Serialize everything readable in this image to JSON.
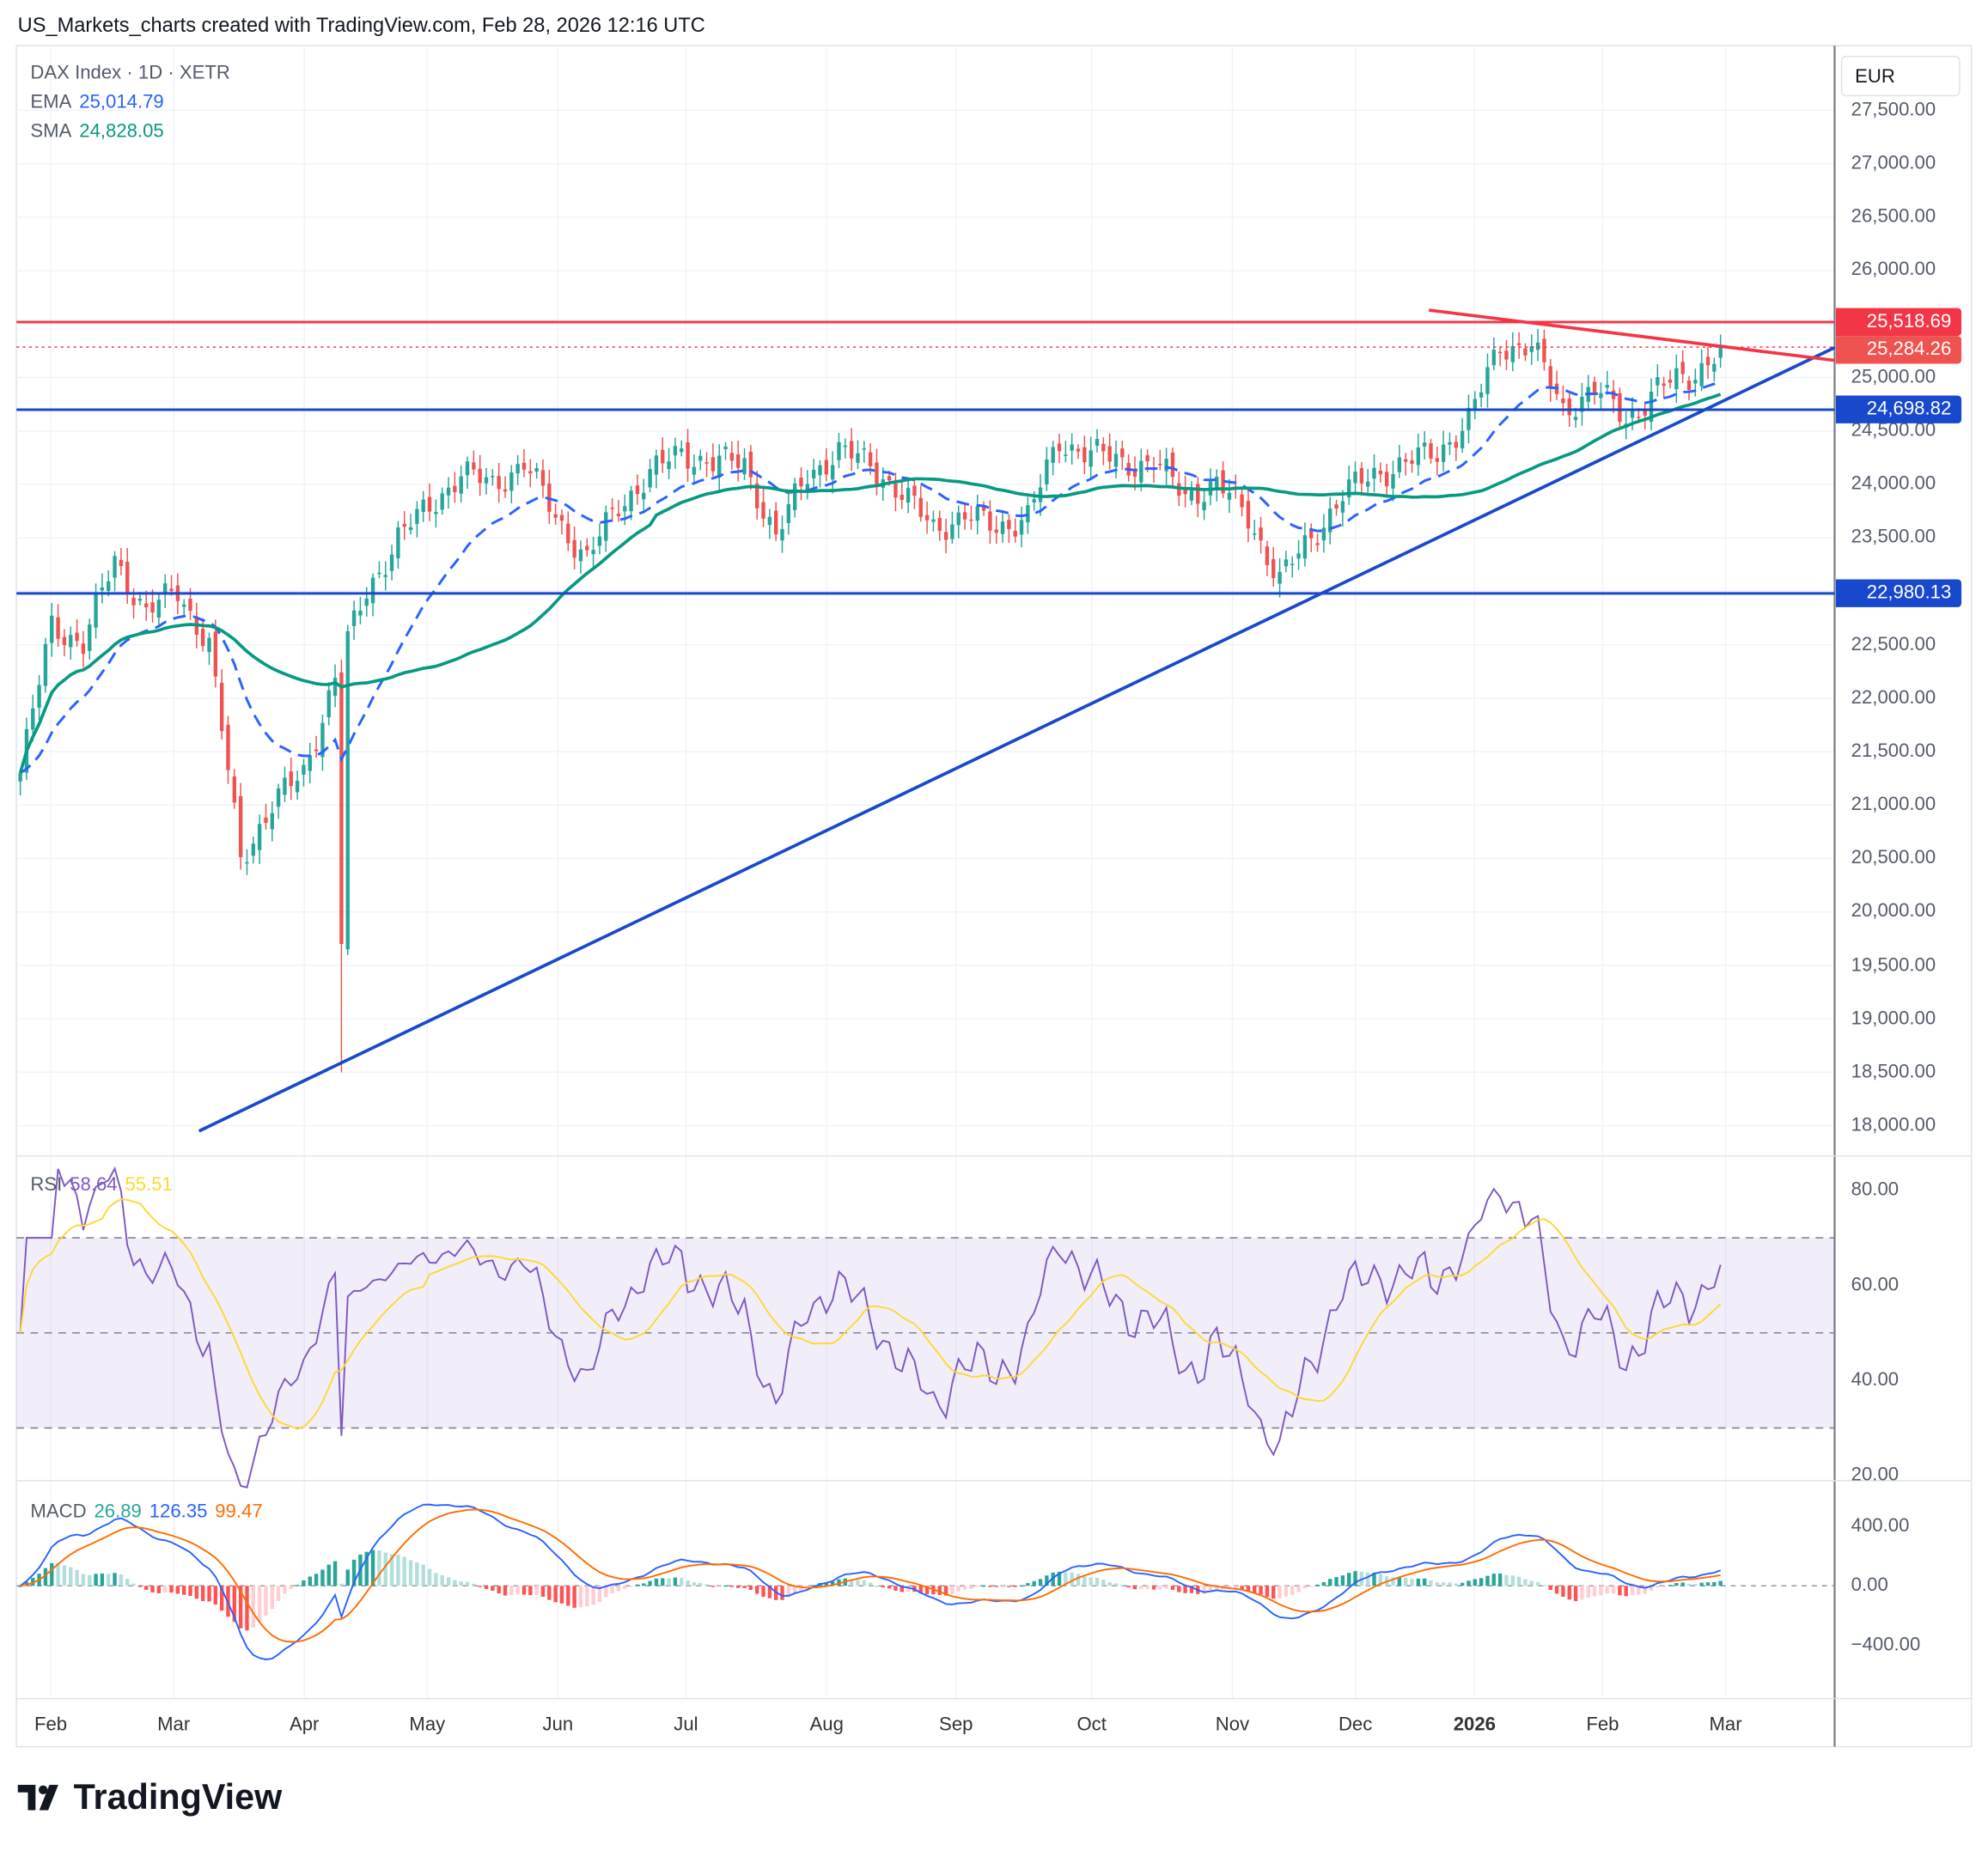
{
  "header": {
    "title": "US_Markets_charts created with TradingView.com, Feb 28, 2026 12:16 UTC"
  },
  "legend": {
    "symbol": "DAX Index · 1D · XETR",
    "ema_label": "EMA",
    "ema_value": "25,014.79",
    "sma_label": "SMA",
    "sma_value": "24,828.05"
  },
  "currency": "EUR",
  "price_axis": [
    "27,500.00",
    "27,000.00",
    "26,500.00",
    "26,000.00",
    "25,000.00",
    "24,500.00",
    "24,000.00",
    "23,500.00",
    "22,500.00",
    "22,000.00",
    "21,500.00",
    "21,000.00",
    "20,500.00",
    "20,000.00",
    "19,500.00",
    "19,000.00",
    "18,500.00",
    "18,000.00"
  ],
  "price_tags": [
    {
      "value": "25,518.69",
      "color": "#f23645"
    },
    {
      "value": "25,284.26",
      "color": "#ef5350"
    },
    {
      "value": "24,698.82",
      "color": "#1848cc"
    },
    {
      "value": "22,980.13",
      "color": "#1848cc"
    }
  ],
  "rsi": {
    "label": "RSI",
    "value": "58.64",
    "ma_value": "55.51",
    "axis": [
      "80.00",
      "60.00",
      "40.00",
      "20.00"
    ]
  },
  "macd": {
    "label": "MACD",
    "hist": "26.89",
    "macd": "126.35",
    "signal": "99.47",
    "axis": [
      "400.00",
      "0.00",
      "−400.00"
    ]
  },
  "time_axis": [
    "Feb",
    "Mar",
    "Apr",
    "May",
    "Jun",
    "Jul",
    "Aug",
    "Sep",
    "Oct",
    "Nov",
    "Dec",
    "2026",
    "Feb",
    "Mar"
  ],
  "logo": "TradingView",
  "colors": {
    "up": "#26a69a",
    "down": "#ef5350",
    "ema": "#2962ff",
    "sma": "#089981",
    "rsi": "#7e57c2",
    "rsi_ma": "#fdd835",
    "macd": "#2962ff",
    "signal": "#ff6d00"
  },
  "chart_data": {
    "type": "candlestick",
    "title": "DAX Index · 1D · XETR",
    "ylim": [
      17800,
      27700
    ],
    "weekly_closes": [
      21300,
      22700,
      22500,
      23300,
      22800,
      23000,
      22500,
      20500,
      21000,
      21300,
      22200,
      23000,
      23500,
      23800,
      24100,
      24000,
      24200,
      23700,
      23300,
      23800,
      24100,
      24300,
      24200,
      24200,
      23500,
      24100,
      24300,
      24200,
      23900,
      23600,
      23700,
      23600,
      23700,
      24400,
      24300,
      24200,
      24200,
      23900,
      24000,
      23700,
      23100,
      23500,
      23900,
      24100,
      24200,
      24300,
      24600,
      25300,
      25300,
      24700,
      24900,
      24600,
      24900,
      25000,
      25284.26
    ],
    "april_low": 18500,
    "horizontal_levels": [
      25518.69,
      25284.26,
      24698.82,
      22980.13
    ],
    "trendlines": [
      {
        "name": "support",
        "from": [
          "Apr 7 2025",
          18500
        ],
        "to": [
          "Mar 2026",
          25280
        ]
      },
      {
        "name": "resistance",
        "from": [
          "Dec 2025",
          25630
        ],
        "to": [
          "Mar 2026",
          25160
        ]
      }
    ],
    "indicators": {
      "ema": 25014.79,
      "sma": 24828.05,
      "rsi": 58.64,
      "rsi_ma": 55.51,
      "macd_hist": 26.89,
      "macd": 126.35,
      "macd_signal": 99.47
    }
  }
}
